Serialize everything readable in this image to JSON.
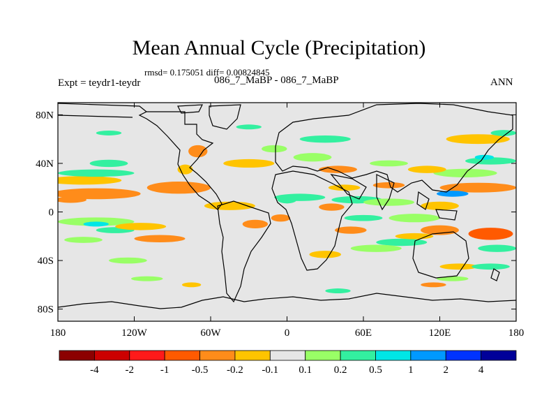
{
  "title": "Mean Annual Cycle (Precipitation)",
  "stats_text": "rmsd= 0.175051 diff= 0.00824845",
  "left_label": "Expt = teydr1-teydr",
  "center_label": "086_7_MaBP - 086_7_MaBP",
  "right_label": "ANN",
  "chart_data": {
    "type": "heatmap",
    "title": "Mean Annual Cycle (Precipitation)",
    "subtitle": "086_7_MaBP - 086_7_MaBP",
    "projection": "cylindrical equidistant (lon/lat map)",
    "x_ticks": [
      {
        "value": -180,
        "label": "180"
      },
      {
        "value": -120,
        "label": "120W"
      },
      {
        "value": -60,
        "label": "60W"
      },
      {
        "value": 0,
        "label": "0"
      },
      {
        "value": 60,
        "label": "60E"
      },
      {
        "value": 120,
        "label": "120E"
      },
      {
        "value": 180,
        "label": "180"
      }
    ],
    "y_ticks": [
      {
        "value": 80,
        "label": "80N"
      },
      {
        "value": 40,
        "label": "40N"
      },
      {
        "value": 0,
        "label": "0"
      },
      {
        "value": -40,
        "label": "40S"
      },
      {
        "value": -80,
        "label": "80S"
      }
    ],
    "xlim": [
      -180,
      180
    ],
    "ylim": [
      -90,
      90
    ],
    "colorbar": {
      "levels": [
        "-4",
        "-2",
        "-1",
        "-0.5",
        "-0.2",
        "-0.1",
        "0.1",
        "0.2",
        "0.5",
        "1",
        "2",
        "4"
      ],
      "colors": [
        "#8c0000",
        "#cc0000",
        "#ff1a1a",
        "#ff5a00",
        "#ff8c1a",
        "#ffc400",
        "#e6e6e6",
        "#99ff66",
        "#33f0a0",
        "#00e6e6",
        "#0099ff",
        "#0033ff",
        "#000099"
      ]
    },
    "background_color": "#e6e6e6",
    "features": [
      {
        "lon": -150,
        "lat": 15,
        "w": 70,
        "h": 9,
        "level": 4
      },
      {
        "lon": -85,
        "lat": 20,
        "w": 50,
        "h": 10,
        "level": 4
      },
      {
        "lon": -160,
        "lat": 26,
        "w": 60,
        "h": 7,
        "level": 5
      },
      {
        "lon": -150,
        "lat": 32,
        "w": 60,
        "h": 6,
        "level": 8
      },
      {
        "lon": -140,
        "lat": 40,
        "w": 30,
        "h": 6,
        "level": 8
      },
      {
        "lon": -170,
        "lat": 10,
        "w": 25,
        "h": 5,
        "level": 4
      },
      {
        "lon": -150,
        "lat": -8,
        "w": 60,
        "h": 7,
        "level": 7
      },
      {
        "lon": -135,
        "lat": -15,
        "w": 30,
        "h": 5,
        "level": 8
      },
      {
        "lon": -115,
        "lat": -12,
        "w": 40,
        "h": 6,
        "level": 5
      },
      {
        "lon": -160,
        "lat": -23,
        "w": 30,
        "h": 5,
        "level": 7
      },
      {
        "lon": -100,
        "lat": -22,
        "w": 40,
        "h": 6,
        "level": 4
      },
      {
        "lon": -125,
        "lat": -40,
        "w": 30,
        "h": 5,
        "level": 7
      },
      {
        "lon": -110,
        "lat": -55,
        "w": 25,
        "h": 4,
        "level": 7
      },
      {
        "lon": -70,
        "lat": 50,
        "w": 15,
        "h": 10,
        "level": 4
      },
      {
        "lon": -80,
        "lat": 35,
        "w": 12,
        "h": 8,
        "level": 5
      },
      {
        "lon": -30,
        "lat": 40,
        "w": 40,
        "h": 7,
        "level": 5
      },
      {
        "lon": -45,
        "lat": 5,
        "w": 40,
        "h": 7,
        "level": 5
      },
      {
        "lon": -25,
        "lat": -10,
        "w": 20,
        "h": 7,
        "level": 4
      },
      {
        "lon": -5,
        "lat": -5,
        "w": 15,
        "h": 6,
        "level": 4
      },
      {
        "lon": 0,
        "lat": 10,
        "w": 15,
        "h": 6,
        "level": 8
      },
      {
        "lon": 10,
        "lat": 12,
        "w": 40,
        "h": 6,
        "level": 8
      },
      {
        "lon": -10,
        "lat": 52,
        "w": 20,
        "h": 6,
        "level": 7
      },
      {
        "lon": 30,
        "lat": 60,
        "w": 40,
        "h": 6,
        "level": 8
      },
      {
        "lon": 20,
        "lat": 45,
        "w": 30,
        "h": 7,
        "level": 7
      },
      {
        "lon": 40,
        "lat": 35,
        "w": 30,
        "h": 6,
        "level": 4
      },
      {
        "lon": 45,
        "lat": 20,
        "w": 25,
        "h": 5,
        "level": 5
      },
      {
        "lon": 35,
        "lat": 4,
        "w": 20,
        "h": 6,
        "level": 4
      },
      {
        "lon": 55,
        "lat": 10,
        "w": 40,
        "h": 6,
        "level": 8
      },
      {
        "lon": 80,
        "lat": 8,
        "w": 40,
        "h": 6,
        "level": 7
      },
      {
        "lon": 120,
        "lat": 5,
        "w": 30,
        "h": 7,
        "level": 5
      },
      {
        "lon": 150,
        "lat": 20,
        "w": 60,
        "h": 8,
        "level": 4
      },
      {
        "lon": 140,
        "lat": 32,
        "w": 50,
        "h": 7,
        "level": 7
      },
      {
        "lon": 160,
        "lat": 42,
        "w": 40,
        "h": 6,
        "level": 8
      },
      {
        "lon": 150,
        "lat": 60,
        "w": 50,
        "h": 8,
        "level": 5
      },
      {
        "lon": 170,
        "lat": 65,
        "w": 20,
        "h": 5,
        "level": 8
      },
      {
        "lon": 80,
        "lat": 40,
        "w": 30,
        "h": 5,
        "level": 7
      },
      {
        "lon": 110,
        "lat": 35,
        "w": 30,
        "h": 6,
        "level": 5
      },
      {
        "lon": 100,
        "lat": -5,
        "w": 40,
        "h": 7,
        "level": 7
      },
      {
        "lon": 120,
        "lat": -15,
        "w": 30,
        "h": 8,
        "level": 4
      },
      {
        "lon": 160,
        "lat": -18,
        "w": 35,
        "h": 10,
        "level": 3
      },
      {
        "lon": 165,
        "lat": -30,
        "w": 30,
        "h": 6,
        "level": 8
      },
      {
        "lon": 90,
        "lat": -25,
        "w": 40,
        "h": 6,
        "level": 8
      },
      {
        "lon": 100,
        "lat": -20,
        "w": 30,
        "h": 5,
        "level": 5
      },
      {
        "lon": 50,
        "lat": -15,
        "w": 25,
        "h": 6,
        "level": 4
      },
      {
        "lon": 70,
        "lat": -30,
        "w": 40,
        "h": 6,
        "level": 7
      },
      {
        "lon": 30,
        "lat": -35,
        "w": 25,
        "h": 6,
        "level": 5
      },
      {
        "lon": 60,
        "lat": -5,
        "w": 30,
        "h": 5,
        "level": 8
      },
      {
        "lon": 135,
        "lat": -45,
        "w": 30,
        "h": 5,
        "level": 5
      },
      {
        "lon": 160,
        "lat": -45,
        "w": 30,
        "h": 5,
        "level": 8
      },
      {
        "lon": 115,
        "lat": -60,
        "w": 20,
        "h": 4,
        "level": 4
      },
      {
        "lon": 130,
        "lat": -55,
        "w": 25,
        "h": 4,
        "level": 7
      },
      {
        "lon": -75,
        "lat": -60,
        "w": 15,
        "h": 4,
        "level": 5
      },
      {
        "lon": 40,
        "lat": -65,
        "w": 20,
        "h": 4,
        "level": 8
      },
      {
        "lon": -140,
        "lat": 65,
        "w": 20,
        "h": 4,
        "level": 8
      },
      {
        "lon": -30,
        "lat": 70,
        "w": 20,
        "h": 4,
        "level": 8
      },
      {
        "lon": 80,
        "lat": 22,
        "w": 25,
        "h": 5,
        "level": 4
      },
      {
        "lon": 130,
        "lat": 15,
        "w": 25,
        "h": 5,
        "level": 10
      },
      {
        "lon": -150,
        "lat": -10,
        "w": 20,
        "h": 4,
        "level": 9
      },
      {
        "lon": 155,
        "lat": 45,
        "w": 15,
        "h": 4,
        "level": 9
      }
    ]
  }
}
